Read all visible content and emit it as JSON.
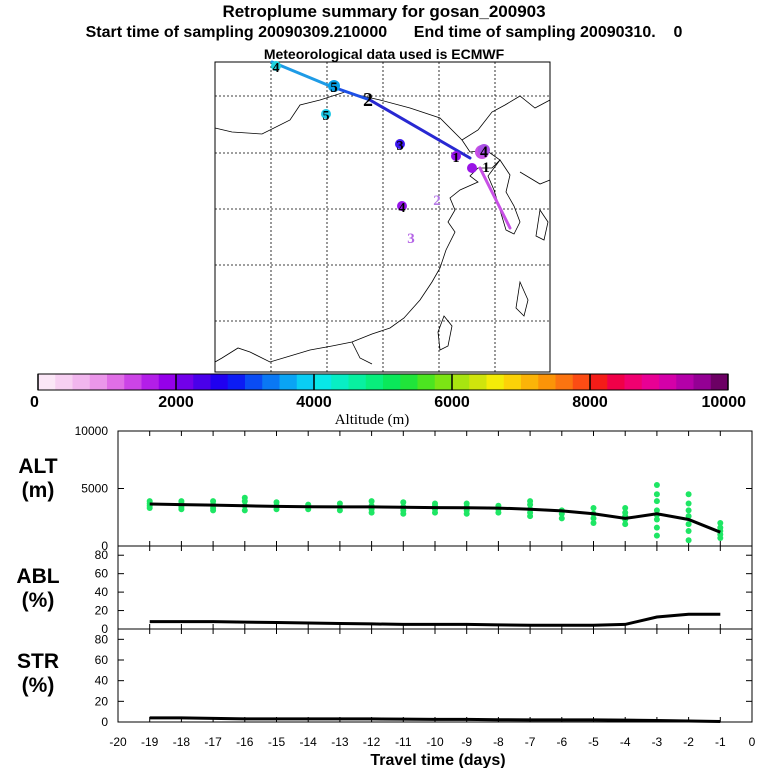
{
  "header": {
    "title": "Retroplume summary for gosan_200903",
    "start_label": "Start time of sampling 20090309.210000",
    "end_label": "End time of sampling 20090310.",
    "end_suffix": "0",
    "met_label": "Meteorological data used is ECMWF"
  },
  "colorbar": {
    "xlabel": "Altitude (m)",
    "min": 0,
    "max": 10000,
    "tick_labels": [
      "0",
      "2000",
      "4000",
      "6000",
      "8000",
      "10000"
    ],
    "colors": [
      "#fbe7f7",
      "#f7d0f2",
      "#f1b6ee",
      "#eb96ea",
      "#e06ee6",
      "#cc44e6",
      "#b31ee8",
      "#9500ea",
      "#7200ea",
      "#4a00ea",
      "#2000f0",
      "#0c1cf4",
      "#0a4cf4",
      "#0a78f4",
      "#0aa4f4",
      "#0acdf4",
      "#08e8e8",
      "#08eec4",
      "#08f0a0",
      "#08ee7c",
      "#0ae85a",
      "#20e43a",
      "#4ce420",
      "#7ce414",
      "#a8e410",
      "#d0e40c",
      "#f4ec08",
      "#fcd208",
      "#fcb408",
      "#fc9408",
      "#fc7410",
      "#fc4c14",
      "#f41c18",
      "#f00048",
      "#f00070",
      "#e80094",
      "#d400a8",
      "#b400a8",
      "#940094",
      "#6c0064"
    ]
  },
  "map": {
    "trajectory_labels": [
      "5",
      "1",
      "2",
      "2",
      "1",
      "4",
      "3",
      "1"
    ],
    "cluster_labels": [
      {
        "label": "4",
        "color": "#1ed2dc"
      },
      {
        "label": "5",
        "color": "#0aa0e6"
      },
      {
        "label": "5",
        "color": "#1ec8e6"
      },
      {
        "label": "2",
        "color": "#000000"
      },
      {
        "label": "3",
        "color": "#3c18f0"
      },
      {
        "label": "1",
        "color": "#9414e6"
      },
      {
        "label": "4",
        "color": "#aa50e6"
      },
      {
        "label": "1",
        "color": "#9a14e6"
      },
      {
        "label": "4",
        "color": "#9614ea"
      },
      {
        "label": "2",
        "color": "#b478e6"
      },
      {
        "label": "3",
        "color": "#b464e6"
      }
    ]
  },
  "panels": [
    {
      "label_line1": "ALT",
      "label_line2": "(m)"
    },
    {
      "label_line1": "ABL",
      "label_line2": "(%)"
    },
    {
      "label_line1": "STR",
      "label_line2": "(%)"
    }
  ],
  "chart_data": [
    {
      "type": "scatter",
      "title": "ALT (m)",
      "ylabel": "ALT (m)",
      "xlabel": "",
      "xlim": [
        -20,
        0
      ],
      "ylim": [
        0,
        10000
      ],
      "y_tick_labels": [
        "10000",
        "5000",
        "0"
      ],
      "y_tick_values": [
        10000,
        5000,
        0
      ],
      "point_color": "#1ee664",
      "points": [
        [
          -19,
          3500
        ],
        [
          -19,
          3700
        ],
        [
          -19,
          3900
        ],
        [
          -19,
          3300
        ],
        [
          -18,
          3400
        ],
        [
          -18,
          3700
        ],
        [
          -18,
          3900
        ],
        [
          -18,
          3200
        ],
        [
          -17,
          3300
        ],
        [
          -17,
          3600
        ],
        [
          -17,
          3900
        ],
        [
          -17,
          3100
        ],
        [
          -16,
          3100
        ],
        [
          -16,
          3500
        ],
        [
          -16,
          3900
        ],
        [
          -16,
          4200
        ],
        [
          -15,
          3200
        ],
        [
          -15,
          3500
        ],
        [
          -15,
          3800
        ],
        [
          -14,
          3200
        ],
        [
          -14,
          3400
        ],
        [
          -14,
          3600
        ],
        [
          -13,
          3100
        ],
        [
          -13,
          3400
        ],
        [
          -13,
          3700
        ],
        [
          -12,
          2900
        ],
        [
          -12,
          3200
        ],
        [
          -12,
          3500
        ],
        [
          -12,
          3900
        ],
        [
          -11,
          2800
        ],
        [
          -11,
          3100
        ],
        [
          -11,
          3400
        ],
        [
          -11,
          3800
        ],
        [
          -10,
          2900
        ],
        [
          -10,
          3200
        ],
        [
          -10,
          3500
        ],
        [
          -10,
          3700
        ],
        [
          -9,
          2800
        ],
        [
          -9,
          3100
        ],
        [
          -9,
          3400
        ],
        [
          -9,
          3700
        ],
        [
          -8,
          2900
        ],
        [
          -8,
          3200
        ],
        [
          -8,
          3500
        ],
        [
          -7,
          2600
        ],
        [
          -7,
          2900
        ],
        [
          -7,
          3200
        ],
        [
          -7,
          3600
        ],
        [
          -7,
          3900
        ],
        [
          -6,
          2400
        ],
        [
          -6,
          2800
        ],
        [
          -6,
          3100
        ],
        [
          -5,
          2000
        ],
        [
          -5,
          2400
        ],
        [
          -5,
          2800
        ],
        [
          -5,
          3300
        ],
        [
          -4,
          1900
        ],
        [
          -4,
          2300
        ],
        [
          -4,
          2600
        ],
        [
          -4,
          2900
        ],
        [
          -4,
          3300
        ],
        [
          -3,
          900
        ],
        [
          -3,
          1600
        ],
        [
          -3,
          2300
        ],
        [
          -3,
          2700
        ],
        [
          -3,
          3100
        ],
        [
          -3,
          3900
        ],
        [
          -3,
          4500
        ],
        [
          -3,
          5300
        ],
        [
          -2,
          500
        ],
        [
          -2,
          1300
        ],
        [
          -2,
          1900
        ],
        [
          -2,
          2600
        ],
        [
          -2,
          3100
        ],
        [
          -2,
          3700
        ],
        [
          -2,
          4500
        ],
        [
          -1,
          700
        ],
        [
          -1,
          1000
        ],
        [
          -1,
          1300
        ],
        [
          -1,
          1600
        ],
        [
          -1,
          2000
        ]
      ],
      "mean_line": {
        "x": [
          -19,
          -18,
          -17,
          -16,
          -15,
          -14,
          -13,
          -12,
          -11,
          -10,
          -9,
          -8,
          -7,
          -6,
          -5,
          -4,
          -3,
          -2,
          -1
        ],
        "y": [
          3650,
          3600,
          3560,
          3500,
          3440,
          3420,
          3400,
          3400,
          3370,
          3340,
          3320,
          3300,
          3200,
          3050,
          2800,
          2400,
          2800,
          2300,
          1200
        ]
      }
    },
    {
      "type": "line",
      "title": "ABL (%)",
      "ylabel": "ABL (%)",
      "xlabel": "",
      "xlim": [
        -20,
        0
      ],
      "ylim": [
        0,
        90
      ],
      "y_tick_labels": [
        "80",
        "60",
        "40",
        "20",
        "0"
      ],
      "y_tick_values": [
        80,
        60,
        40,
        20,
        0
      ],
      "x": [
        -19,
        -18,
        -17,
        -16,
        -15,
        -14,
        -13,
        -12,
        -11,
        -10,
        -9,
        -8,
        -7,
        -6,
        -5,
        -4,
        -3,
        -2,
        -1
      ],
      "values": [
        8,
        8,
        8,
        7.5,
        7,
        6.5,
        6,
        5.5,
        5,
        5,
        5,
        4.5,
        4,
        4,
        4,
        5,
        13,
        16,
        16
      ]
    },
    {
      "type": "line",
      "title": "STR (%)",
      "ylabel": "STR (%)",
      "xlabel": "Travel time (days)",
      "xlim": [
        -20,
        0
      ],
      "ylim": [
        0,
        90
      ],
      "y_tick_labels": [
        "80",
        "60",
        "40",
        "20",
        "0"
      ],
      "y_tick_values": [
        80,
        60,
        40,
        20,
        0
      ],
      "x_tick_labels": [
        "-20",
        "-19",
        "-18",
        "-17",
        "-16",
        "-15",
        "-14",
        "-13",
        "-12",
        "-11",
        "-10",
        "-9",
        "-8",
        "-7",
        "-6",
        "-5",
        "-4",
        "-3",
        "-2",
        "-1",
        "0"
      ],
      "x": [
        -19,
        -18,
        -17,
        -16,
        -15,
        -14,
        -13,
        -12,
        -11,
        -10,
        -9,
        -8,
        -7,
        -6,
        -5,
        -4,
        -3,
        -2,
        -1
      ],
      "values": [
        4,
        4,
        3.5,
        3,
        3,
        3,
        3,
        3,
        2.8,
        2.5,
        2.5,
        2.2,
        2,
        2,
        2,
        1.8,
        1.5,
        1,
        0.5
      ]
    }
  ]
}
